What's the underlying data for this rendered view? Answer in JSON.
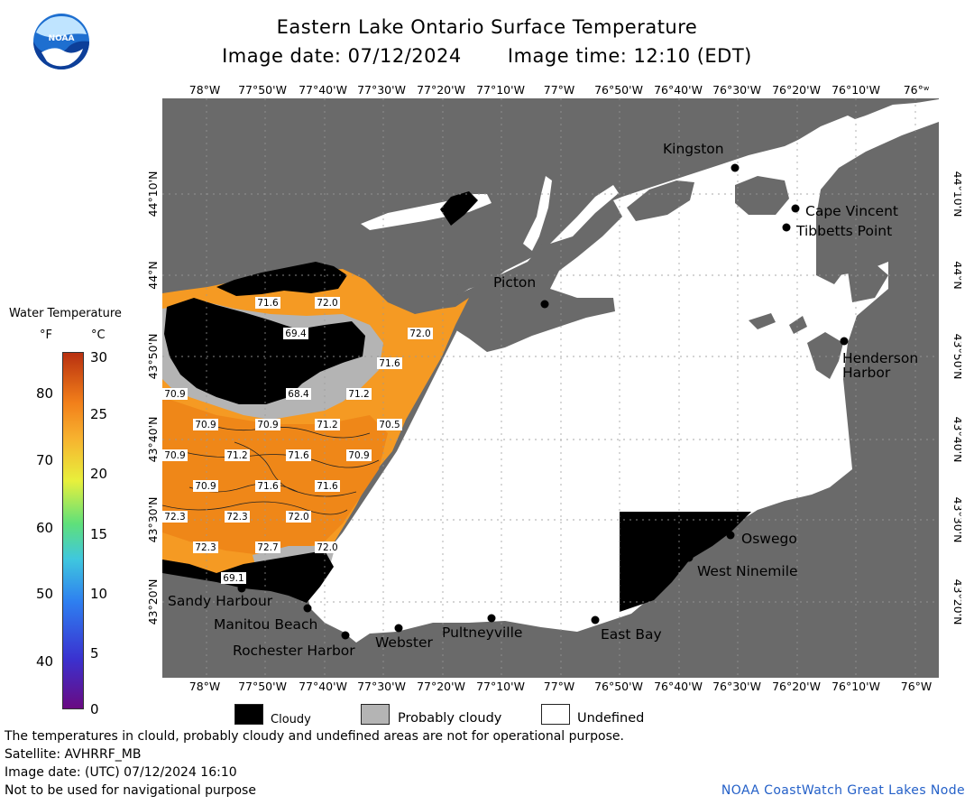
{
  "header": {
    "title": "Eastern Lake Ontario Surface Temperature",
    "image_date": "Image date: 07/12/2024",
    "image_time": "Image time: 12:10 (EDT)"
  },
  "axes": {
    "longitudes": [
      "78°W",
      "77°50'W",
      "77°40'W",
      "77°30'W",
      "77°20'W",
      "77°10'W",
      "77°W",
      "76°50'W",
      "76°40'W",
      "76°30'W",
      "76°20'W",
      "76°10'W",
      "76°W"
    ],
    "top_last": "76°ʷ",
    "latitudes": [
      "44°10'N",
      "44°N",
      "43°50'N",
      "43°40'N",
      "43°30'N",
      "43°20'N"
    ]
  },
  "legend": {
    "title": "Water Temperature",
    "unit_f": "°F",
    "unit_c": "°C",
    "ticks_f": [
      "80",
      "70",
      "60",
      "50",
      "40"
    ],
    "ticks_c": [
      "30",
      "25",
      "20",
      "15",
      "10",
      "5",
      "0"
    ],
    "key": [
      {
        "label": "Cloudy",
        "color": "#000000"
      },
      {
        "label": "Probably cloudy",
        "color": "#b4b4b4"
      },
      {
        "label": "Undefined",
        "color": "#ffffff"
      }
    ]
  },
  "places": {
    "kingston": "Kingston",
    "cape_vincent": "Cape Vincent",
    "tibbetts": "Tibbetts Point",
    "picton": "Picton",
    "henderson_1": "Henderson",
    "henderson_2": "Harbor",
    "oswego": "Oswego",
    "west_ninemile": "West Ninemile",
    "east_bay": "East Bay",
    "pultneyville": "Pultneyville",
    "webster": "Webster",
    "rochester": "Rochester Harbor",
    "manitou": "Manitou Beach",
    "sandy": "Sandy Harbour"
  },
  "temperature_labels": [
    "71.6",
    "72.0",
    "69.4",
    "72.0",
    "71.6",
    "68.4",
    "71.2",
    "70.9",
    "70.9",
    "70.9",
    "71.2",
    "70.5",
    "70.9",
    "71.2",
    "71.6",
    "70.9",
    "70.9",
    "71.6",
    "71.6",
    "72.3",
    "72.3",
    "72.0",
    "72.3",
    "72.7",
    "72.0",
    "69.1"
  ],
  "footer": {
    "disclaimer": "The temperatures in clould, probably cloudy and undefined areas are not for operational purpose.",
    "satellite": "Satellite: AVHRRF_MB",
    "utc_date": "Image date: (UTC) 07/12/2024  16:10",
    "nav": "Not to be used for navigational purpose",
    "credit": "NOAA CoastWatch Great Lakes Node"
  },
  "logo_text": "NOAA",
  "colors": {
    "land": "#6a6a6a",
    "cloud": "#000000",
    "probably_cloudy": "#b4b4b4",
    "warm_water": "#f59a23",
    "undefined": "#ffffff",
    "credit": "#2460c8"
  }
}
